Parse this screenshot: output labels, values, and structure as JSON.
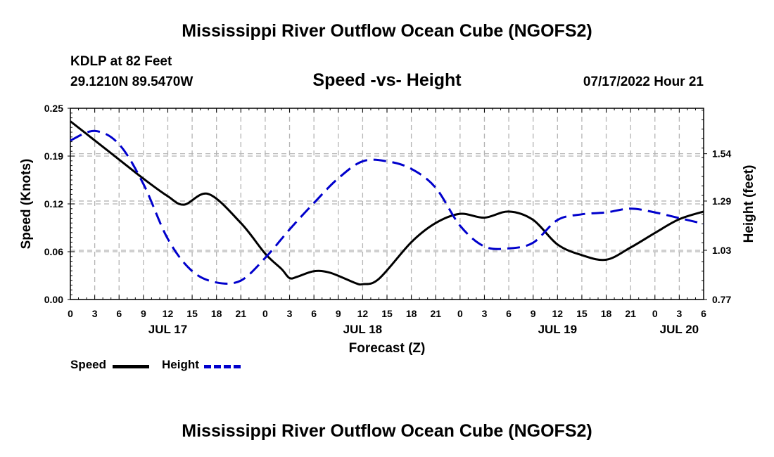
{
  "page": {
    "title": "Mississippi River Outflow Ocean Cube (NGOFS2)",
    "station": "KDLP at 82 Feet",
    "coords": "29.1210N  89.5470W",
    "datetime": "07/17/2022 Hour 21",
    "footer_title": "Mississippi River Outflow Ocean Cube (NGOFS2)"
  },
  "chart_data": {
    "type": "line",
    "title": "Speed -vs- Height",
    "xlabel": "Forecast (Z)",
    "ylabel": "Speed (Knots)",
    "y2label": "Height (feet)",
    "x_range_hours": [
      0,
      78
    ],
    "xticks": [
      {
        "h": 0,
        "label": "0"
      },
      {
        "h": 3,
        "label": "3"
      },
      {
        "h": 6,
        "label": "6"
      },
      {
        "h": 9,
        "label": "9"
      },
      {
        "h": 12,
        "label": "12"
      },
      {
        "h": 15,
        "label": "15"
      },
      {
        "h": 18,
        "label": "18"
      },
      {
        "h": 21,
        "label": "21"
      },
      {
        "h": 24,
        "label": "0"
      },
      {
        "h": 27,
        "label": "3"
      },
      {
        "h": 30,
        "label": "6"
      },
      {
        "h": 33,
        "label": "9"
      },
      {
        "h": 36,
        "label": "12"
      },
      {
        "h": 39,
        "label": "15"
      },
      {
        "h": 42,
        "label": "18"
      },
      {
        "h": 45,
        "label": "21"
      },
      {
        "h": 48,
        "label": "0"
      },
      {
        "h": 51,
        "label": "3"
      },
      {
        "h": 54,
        "label": "6"
      },
      {
        "h": 57,
        "label": "9"
      },
      {
        "h": 60,
        "label": "12"
      },
      {
        "h": 63,
        "label": "15"
      },
      {
        "h": 66,
        "label": "18"
      },
      {
        "h": 69,
        "label": "21"
      },
      {
        "h": 72,
        "label": "0"
      },
      {
        "h": 75,
        "label": "3"
      },
      {
        "h": 78,
        "label": "6"
      }
    ],
    "day_labels": [
      {
        "h": 12,
        "label": "JUL 17"
      },
      {
        "h": 36,
        "label": "JUL 18"
      },
      {
        "h": 60,
        "label": "JUL 19"
      },
      {
        "h": 75,
        "label": "JUL 20"
      }
    ],
    "ylim": [
      0.0,
      0.25
    ],
    "yticks": [
      {
        "v": 0.0,
        "label": "0.00"
      },
      {
        "v": 0.0625,
        "label": "0.06"
      },
      {
        "v": 0.125,
        "label": "0.12"
      },
      {
        "v": 0.1875,
        "label": "0.19"
      },
      {
        "v": 0.25,
        "label": "0.25"
      }
    ],
    "y2lim": [
      0.77,
      1.78
    ],
    "y2ticks": [
      {
        "v": 0.77,
        "label": "0.77"
      },
      {
        "v": 1.03,
        "label": "1.03"
      },
      {
        "v": 1.29,
        "label": "1.29"
      },
      {
        "v": 1.54,
        "label": "1.54"
      }
    ],
    "series": [
      {
        "name": "Speed",
        "color": "#000000",
        "axis": "left",
        "dash": "solid",
        "x": [
          0,
          3,
          6,
          9,
          12,
          14,
          17,
          21,
          24,
          26,
          27,
          28,
          30,
          32,
          35,
          36,
          38,
          42,
          45,
          48,
          51,
          54,
          57,
          60,
          63,
          66,
          69,
          72,
          75,
          78
        ],
        "values": [
          0.233,
          0.208,
          0.183,
          0.158,
          0.135,
          0.124,
          0.138,
          0.1,
          0.06,
          0.04,
          0.028,
          0.03,
          0.037,
          0.035,
          0.022,
          0.02,
          0.027,
          0.075,
          0.1,
          0.112,
          0.107,
          0.115,
          0.104,
          0.072,
          0.058,
          0.052,
          0.068,
          0.087,
          0.105,
          0.115
        ]
      },
      {
        "name": "Height",
        "color": "#0000cc",
        "axis": "right",
        "dash": "dashed",
        "x": [
          0,
          3,
          6,
          9,
          12,
          15,
          18,
          21,
          24,
          27,
          30,
          33,
          36,
          39,
          42,
          45,
          48,
          51,
          54,
          57,
          60,
          63,
          66,
          69,
          72,
          75,
          78
        ],
        "values": [
          1.61,
          1.66,
          1.59,
          1.38,
          1.09,
          0.92,
          0.86,
          0.87,
          0.99,
          1.14,
          1.28,
          1.41,
          1.5,
          1.5,
          1.46,
          1.36,
          1.16,
          1.05,
          1.04,
          1.07,
          1.19,
          1.22,
          1.23,
          1.25,
          1.23,
          1.2,
          1.17
        ]
      }
    ],
    "legend": [
      {
        "name": "Speed",
        "color": "#000000"
      },
      {
        "name": "Height",
        "color": "#0000cc"
      }
    ],
    "grid": true
  }
}
